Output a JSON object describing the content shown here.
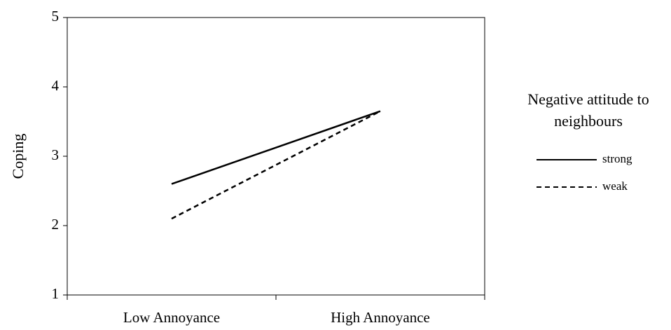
{
  "chart_data": {
    "type": "line",
    "y_label": "Coping",
    "categories": [
      "Low Annoyance",
      "High Annoyance"
    ],
    "series": [
      {
        "name": "strong",
        "color": "#000000",
        "dash": "solid",
        "values": [
          2.6,
          3.65
        ]
      },
      {
        "name": "weak",
        "color": "#000000",
        "dash": "dashed",
        "values": [
          2.1,
          3.65
        ]
      }
    ],
    "legend_title": "Negative attitude to neighbours",
    "ylim": [
      1,
      5
    ],
    "yticks": [
      1,
      2,
      3,
      4,
      5
    ],
    "grid": false
  }
}
